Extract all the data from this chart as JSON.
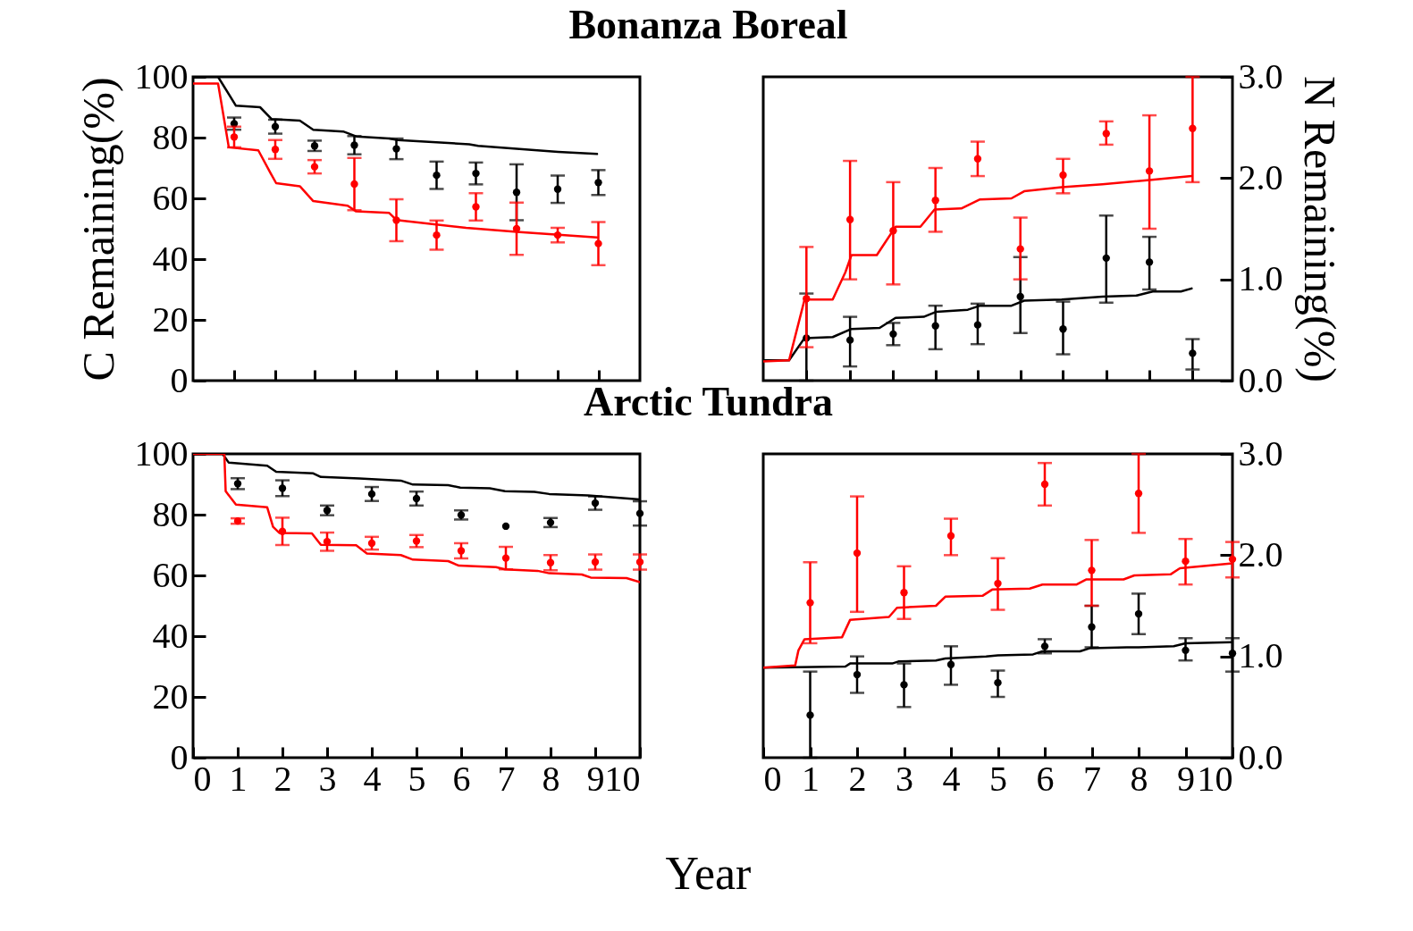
{
  "chart_data": [
    {
      "type": "scatter",
      "title": "Bonanza Boreal",
      "ylabel": "C Remaining(%)",
      "xlim": [
        0,
        10
      ],
      "xticks": [
        {
          "value": 0.92,
          "label": null
        },
        {
          "value": 1.84,
          "label": null
        },
        {
          "value": 2.72,
          "label": null
        },
        {
          "value": 3.61,
          "label": null
        },
        {
          "value": 4.55,
          "label": null
        },
        {
          "value": 5.45,
          "label": null
        },
        {
          "value": 6.33,
          "label": null
        },
        {
          "value": 7.24,
          "label": null
        },
        {
          "value": 8.16,
          "label": null
        },
        {
          "value": 9.07,
          "label": null
        }
      ],
      "ylim": [
        0,
        100
      ],
      "yticks": [
        0,
        20,
        40,
        60,
        80,
        100
      ],
      "tick_labels": "y",
      "series": [
        {
          "type": "line",
          "color": "#000000",
          "x": [
            0,
            0.56,
            0.96,
            1.5,
            1.76,
            2.39,
            2.69,
            3.36,
            3.65,
            4.39,
            4.58,
            6.18,
            6.38,
            7.24,
            8.17,
            9.04
          ],
          "values": [
            100,
            100,
            90.5,
            90,
            86.1,
            85.6,
            82.6,
            82,
            80.4,
            79.7,
            79.2,
            77.8,
            77.3,
            76.3,
            75.3,
            74.6
          ]
        },
        {
          "type": "line",
          "color": "#ff0000",
          "x": [
            0,
            0.56,
            0.8,
            1.46,
            1.73,
            1.86,
            2.39,
            2.69,
            3.46,
            3.65,
            4.39,
            4.55,
            6.11,
            7.24,
            8.11,
            9.04
          ],
          "values": [
            97.8,
            97.8,
            76.8,
            75.8,
            68.4,
            65,
            64,
            59.1,
            57.6,
            55.7,
            55.2,
            52.9,
            50.3,
            49,
            48.1,
            47.1
          ]
        },
        {
          "type": "scatter",
          "marker": "circle",
          "color": "#000000",
          "x": [
            0.92,
            1.84,
            2.72,
            3.61,
            4.55,
            5.45,
            6.33,
            7.24,
            8.16,
            9.07
          ],
          "values": [
            84.6,
            83.6,
            77.3,
            77.5,
            76.3,
            67.6,
            68.2,
            62.0,
            63.0,
            65.2
          ],
          "errors": [
            2,
            2.3,
            1.7,
            3,
            3.4,
            4.5,
            3.6,
            9.2,
            4.5,
            4.1
          ]
        },
        {
          "type": "scatter",
          "marker": "circle",
          "color": "#ff0000",
          "x": [
            0.92,
            1.84,
            2.72,
            3.61,
            4.55,
            5.45,
            6.33,
            7.24,
            8.16,
            9.07
          ],
          "values": [
            80.2,
            76.1,
            70.4,
            64.7,
            52.8,
            47.9,
            57.2,
            50.0,
            47.9,
            45.1
          ],
          "errors": [
            3.4,
            3.1,
            2.2,
            8.6,
            6.9,
            4.8,
            4.5,
            8.6,
            2.4,
            7.1
          ]
        }
      ]
    },
    {
      "type": "scatter",
      "ylabel": "N Remaining(%)",
      "xlim": [
        0,
        10
      ],
      "xticks": [
        {
          "value": 0.92,
          "label": null
        },
        {
          "value": 1.85,
          "label": null
        },
        {
          "value": 2.77,
          "label": null
        },
        {
          "value": 3.67,
          "label": null
        },
        {
          "value": 4.57,
          "label": null
        },
        {
          "value": 5.48,
          "label": null
        },
        {
          "value": 6.39,
          "label": null
        },
        {
          "value": 7.31,
          "label": null
        },
        {
          "value": 8.23,
          "label": null
        },
        {
          "value": 9.15,
          "label": null
        }
      ],
      "ylim": [
        0,
        3
      ],
      "yticks": [
        {
          "value": 0,
          "label": "0.0"
        },
        {
          "value": 1,
          "label": "1.0"
        },
        {
          "value": 2,
          "label": "2.0"
        },
        {
          "value": 3,
          "label": "3.0"
        }
      ],
      "tick_labels": "y",
      "series": [
        {
          "type": "line",
          "color": "#000000",
          "x": [
            0,
            0.55,
            0.88,
            1.48,
            1.88,
            2.48,
            2.82,
            3.42,
            3.69,
            4.36,
            4.62,
            5.29,
            5.56,
            6.36,
            7.23,
            7.96,
            8.3,
            8.9,
            9.13
          ],
          "values": [
            0.2,
            0.2,
            0.42,
            0.43,
            0.51,
            0.52,
            0.62,
            0.63,
            0.68,
            0.7,
            0.74,
            0.74,
            0.79,
            0.8,
            0.83,
            0.84,
            0.88,
            0.88,
            0.91
          ]
        },
        {
          "type": "line",
          "color": "#ff0000",
          "x": [
            0,
            0.55,
            0.88,
            1.48,
            1.75,
            1.88,
            2.42,
            2.82,
            3.35,
            3.65,
            4.22,
            4.62,
            5.29,
            5.56,
            6.36,
            7.23,
            8.23,
            9.13
          ],
          "values": [
            0.19,
            0.2,
            0.8,
            0.8,
            1.07,
            1.24,
            1.24,
            1.52,
            1.52,
            1.69,
            1.7,
            1.79,
            1.8,
            1.87,
            1.91,
            1.94,
            1.98,
            2.02
          ]
        },
        {
          "type": "scatter",
          "marker": "circle",
          "color": "#000000",
          "x": [
            0.92,
            1.85,
            2.77,
            3.67,
            4.57,
            5.48,
            6.39,
            7.31,
            8.23,
            9.15
          ],
          "values": [
            0.42,
            0.4,
            0.46,
            0.54,
            0.55,
            0.83,
            0.51,
            1.21,
            1.17,
            0.27
          ],
          "errors": [
            [
              0,
              0.86
            ],
            [
              0.14,
              0.63
            ],
            [
              0.35,
              0.57
            ],
            [
              0.31,
              0.74
            ],
            [
              0.36,
              0.76
            ],
            [
              0.47,
              1.22
            ],
            [
              0.26,
              0.78
            ],
            [
              0.77,
              1.63
            ],
            [
              0.9,
              1.42
            ],
            [
              0.11,
              0.41
            ]
          ]
        },
        {
          "type": "scatter",
          "marker": "circle",
          "color": "#ff0000",
          "x": [
            0.92,
            1.85,
            2.77,
            3.67,
            4.57,
            5.48,
            6.39,
            7.31,
            8.23,
            9.15
          ],
          "values": [
            0.81,
            1.59,
            1.48,
            1.78,
            2.19,
            1.3,
            2.03,
            2.44,
            2.07,
            2.49
          ],
          "errors": [
            [
              0.33,
              1.32
            ],
            [
              1.0,
              2.17
            ],
            [
              0.95,
              1.96
            ],
            [
              1.47,
              2.1
            ],
            [
              2.02,
              2.36
            ],
            [
              1.0,
              1.61
            ],
            [
              1.85,
              2.19
            ],
            [
              2.33,
              2.56
            ],
            [
              1.5,
              2.62
            ],
            [
              1.96,
              3.0
            ]
          ]
        }
      ]
    },
    {
      "type": "scatter",
      "title": "Arctic Tundra",
      "xlabel": "Year",
      "xlim": [
        0,
        10
      ],
      "xticks": [
        0,
        1,
        2,
        3,
        4,
        5,
        6,
        7,
        8,
        9,
        10
      ],
      "ylim": [
        0,
        100
      ],
      "yticks": [
        0,
        20,
        40,
        60,
        80,
        100
      ],
      "series": [
        {
          "type": "line",
          "color": "#000000",
          "x": [
            0,
            0.66,
            0.8,
            1.66,
            1.86,
            2.69,
            2.86,
            3.72,
            4.65,
            4.92,
            5.71,
            5.98,
            6.64,
            6.98,
            7.64,
            7.97,
            8.84,
            10
          ],
          "values": [
            100,
            100,
            97.1,
            96.1,
            94.1,
            93.6,
            92.4,
            91.9,
            91.2,
            89.9,
            89.7,
            88.9,
            88.7,
            87.7,
            87.5,
            86.8,
            86.3,
            85
          ]
        },
        {
          "type": "line",
          "color": "#ff0000",
          "x": [
            0,
            0.7,
            0.73,
            0.96,
            1.66,
            1.79,
            1.93,
            2.66,
            2.86,
            3.65,
            3.89,
            4.65,
            4.92,
            5.71,
            5.95,
            6.78,
            6.98,
            7.71,
            7.97,
            8.7,
            8.9,
            9.7,
            10
          ],
          "values": [
            100,
            100,
            87.7,
            83.3,
            82.4,
            76,
            74,
            73.8,
            70.1,
            69.9,
            67.2,
            66.7,
            65.2,
            64.7,
            63.2,
            62.7,
            62,
            61.5,
            60.7,
            60.3,
            59.3,
            59.1,
            57.8
          ]
        },
        {
          "type": "scatter",
          "marker": "circle",
          "color": "#000000",
          "x": [
            1,
            2,
            3,
            4,
            5,
            6,
            7,
            8,
            9,
            10
          ],
          "values": [
            90.2,
            88.7,
            81.4,
            86.8,
            85.3,
            79.9,
            76.2,
            77.4,
            83.8,
            80.4
          ],
          "errors": [
            1.8,
            2.6,
            1.6,
            2.3,
            2.3,
            1.5,
            null,
            1.5,
            2.2,
            4
          ]
        },
        {
          "type": "scatter",
          "marker": "circle",
          "color": "#ff0000",
          "x": [
            1,
            2,
            3,
            4,
            5,
            6,
            7,
            8,
            9,
            10
          ],
          "values": [
            77.9,
            74.5,
            71.1,
            70.6,
            71.3,
            68.1,
            65.7,
            64.2,
            64.4,
            64.4
          ],
          "errors": [
            0.9,
            4.5,
            3,
            2.1,
            2,
            2.5,
            3.7,
            2.5,
            2.5,
            2.5
          ]
        }
      ]
    },
    {
      "type": "scatter",
      "xlim": [
        0,
        10
      ],
      "xticks": [
        0,
        1,
        2,
        3,
        4,
        5,
        6,
        7,
        8,
        9,
        10
      ],
      "ylim": [
        0,
        3
      ],
      "yticks": [
        {
          "value": 0,
          "label": "0.0"
        },
        {
          "value": 1,
          "label": "1.0"
        },
        {
          "value": 2,
          "label": "2.0"
        },
        {
          "value": 3,
          "label": "3.0"
        }
      ],
      "series": [
        {
          "type": "line",
          "color": "#000000",
          "x": [
            0,
            1.75,
            1.85,
            2.75,
            2.88,
            3.68,
            3.88,
            4.75,
            5.0,
            5.75,
            5.95,
            6.75,
            6.95,
            7.75,
            8.0,
            8.75,
            9.0,
            10
          ],
          "values": [
            0.89,
            0.9,
            0.93,
            0.93,
            0.95,
            0.96,
            0.98,
            1.0,
            1.01,
            1.02,
            1.05,
            1.05,
            1.08,
            1.09,
            1.09,
            1.1,
            1.13,
            1.14
          ]
        },
        {
          "type": "line",
          "color": "#ff0000",
          "x": [
            0,
            0.68,
            0.75,
            0.88,
            1.68,
            1.85,
            2.68,
            2.85,
            3.68,
            3.88,
            4.68,
            4.88,
            5.68,
            5.95,
            6.68,
            6.88,
            7.68,
            7.91,
            8.68,
            8.88,
            10
          ],
          "values": [
            0.89,
            0.91,
            1.06,
            1.17,
            1.19,
            1.36,
            1.39,
            1.48,
            1.5,
            1.59,
            1.6,
            1.66,
            1.67,
            1.71,
            1.71,
            1.76,
            1.76,
            1.8,
            1.81,
            1.87,
            1.92
          ]
        },
        {
          "type": "scatter",
          "marker": "circle",
          "color": "#000000",
          "x": [
            1,
            2,
            3,
            4,
            5,
            6,
            7,
            8,
            9,
            10
          ],
          "values": [
            0.42,
            0.82,
            0.72,
            0.92,
            0.74,
            1.1,
            1.29,
            1.42,
            1.06,
            1.03
          ],
          "errors": [
            [
              0,
              0.85
            ],
            [
              0.64,
              1.0
            ],
            [
              0.5,
              0.93
            ],
            [
              0.72,
              1.1
            ],
            [
              0.6,
              0.86
            ],
            [
              1.03,
              1.17
            ],
            [
              1.09,
              1.5
            ],
            [
              1.22,
              1.62
            ],
            [
              0.96,
              1.18
            ],
            [
              0.85,
              1.18
            ]
          ]
        },
        {
          "type": "scatter",
          "marker": "circle",
          "color": "#ff0000",
          "x": [
            1,
            2,
            3,
            4,
            5,
            6,
            7,
            8,
            9,
            10
          ],
          "values": [
            1.53,
            2.02,
            1.63,
            2.19,
            1.72,
            2.7,
            1.85,
            2.61,
            1.94,
            1.96
          ],
          "errors": [
            [
              1.13,
              1.93
            ],
            [
              1.44,
              2.58
            ],
            [
              1.37,
              1.89
            ],
            [
              2.0,
              2.36
            ],
            [
              1.46,
              1.97
            ],
            [
              2.49,
              2.91
            ],
            [
              1.5,
              2.15
            ],
            [
              2.22,
              3.0
            ],
            [
              1.71,
              2.16
            ],
            [
              1.78,
              2.13
            ]
          ]
        }
      ]
    }
  ]
}
